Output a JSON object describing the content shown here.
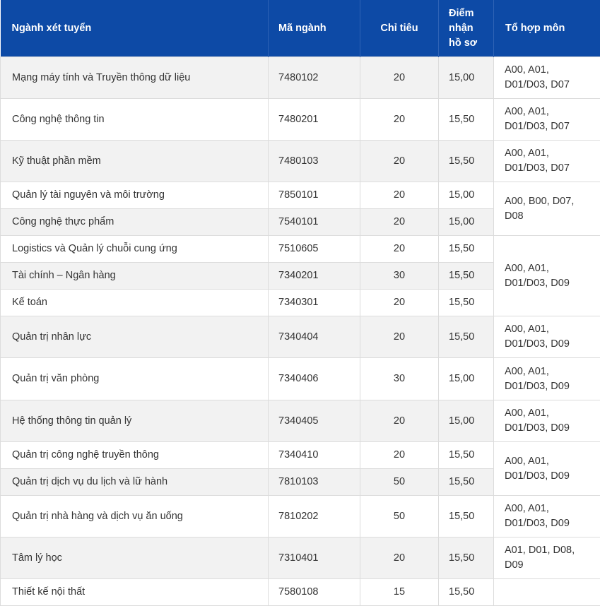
{
  "headers": {
    "nganh": "Ngành xét tuyển",
    "ma": "Mã ngành",
    "chitieu": "Chỉ tiêu",
    "diem_l1": "Điểm",
    "diem_l2": "nhận",
    "diem_l3": "hồ sơ",
    "tohop": "Tổ hợp môn"
  },
  "rows": [
    {
      "name": "Mạng máy tính và Truyền thông dữ liệu",
      "code": "7480102",
      "quota": "20",
      "score": "15,00"
    },
    {
      "name": "Công nghệ thông tin",
      "code": "7480201",
      "quota": "20",
      "score": "15,50"
    },
    {
      "name": "Kỹ thuật phần mềm",
      "code": "7480103",
      "quota": "20",
      "score": "15,50"
    },
    {
      "name": "Quản lý tài nguyên và môi trường",
      "code": "7850101",
      "quota": "20",
      "score": "15,00"
    },
    {
      "name": "Công nghệ thực phẩm",
      "code": "7540101",
      "quota": "20",
      "score": "15,00"
    },
    {
      "name": "Logistics và Quản lý chuỗi cung ứng",
      "code": "7510605",
      "quota": "20",
      "score": "15,50"
    },
    {
      "name": "Tài chính – Ngân hàng",
      "code": "7340201",
      "quota": "30",
      "score": "15,50"
    },
    {
      "name": "Kế toán",
      "code": "7340301",
      "quota": "20",
      "score": "15,50"
    },
    {
      "name": "Quản trị nhân lực",
      "code": "7340404",
      "quota": "20",
      "score": "15,50"
    },
    {
      "name": "Quản trị văn phòng",
      "code": "7340406",
      "quota": "30",
      "score": "15,00"
    },
    {
      "name": "Hệ thống thông tin quản lý",
      "code": "7340405",
      "quota": "20",
      "score": "15,00"
    },
    {
      "name": "Quản trị công nghệ truyền thông",
      "code": "7340410",
      "quota": "20",
      "score": "15,50"
    },
    {
      "name": "Quản trị dịch vụ du lịch và lữ hành",
      "code": "7810103",
      "quota": "50",
      "score": "15,50"
    },
    {
      "name": "Quản trị nhà hàng và dịch vụ ăn uống",
      "code": "7810202",
      "quota": "50",
      "score": "15,50"
    },
    {
      "name": "Tâm lý học",
      "code": "7310401",
      "quota": "20",
      "score": "15,50"
    },
    {
      "name": "Thiết kế nội thất",
      "code": "7580108",
      "quota": "15",
      "score": "15,50"
    }
  ],
  "combos": [
    {
      "l1": "A00, A01,",
      "l2": "D01/D03, D07"
    },
    {
      "l1": "A00, A01,",
      "l2": "D01/D03, D07"
    },
    {
      "l1": "A00, A01,",
      "l2": "D01/D03, D07"
    },
    {
      "l1": "A00, B00, D07,",
      "l2": "D08"
    },
    {
      "l1": "A00, A01,",
      "l2": "D01/D03, D09"
    },
    {
      "l1": "A00, A01,",
      "l2": "D01/D03, D09"
    },
    {
      "l1": "A00, A01,",
      "l2": "D01/D03, D09"
    },
    {
      "l1": "A00, A01,",
      "l2": "D01/D03, D09"
    },
    {
      "l1": "A00, A01,",
      "l2": "D01/D03, D09"
    },
    {
      "l1": "A00, A01,",
      "l2": "D01/D03, D09"
    },
    {
      "l1": "A01, D01, D08,",
      "l2": "D09"
    },
    {
      "l1": "",
      "l2": ""
    }
  ]
}
